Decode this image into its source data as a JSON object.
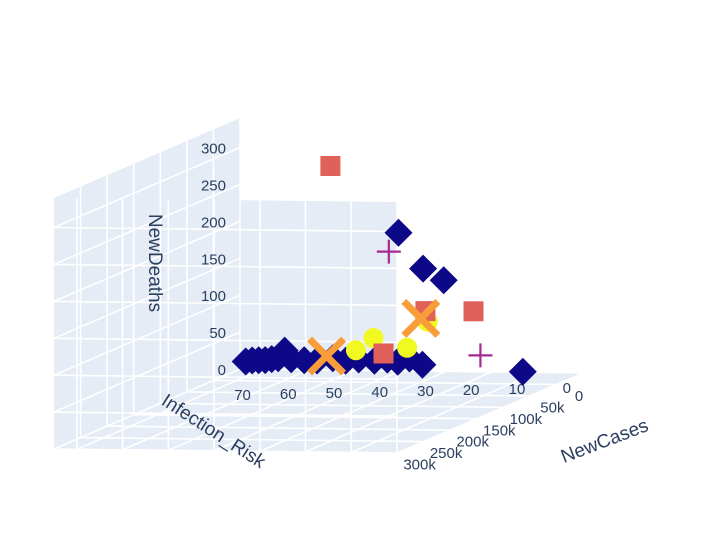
{
  "chart_data": {
    "type": "scatter3d",
    "axes": {
      "x": {
        "title": "NewCases",
        "ticks": [
          0,
          50000,
          100000,
          150000,
          200000,
          250000,
          300000
        ],
        "tick_labels": [
          "0",
          "50k",
          "100k",
          "150k",
          "200k",
          "250k",
          "300k"
        ]
      },
      "y": {
        "title": "Infection_Risk",
        "ticks": [
          0,
          10,
          20,
          30,
          40,
          50,
          60,
          70
        ],
        "tick_labels": [
          "0",
          "10",
          "20",
          "30",
          "40",
          "50",
          "60",
          "70"
        ]
      },
      "z": {
        "title": "NewDeaths",
        "ticks": [
          0,
          50,
          100,
          150,
          200,
          250,
          300
        ],
        "tick_labels": [
          "0",
          "50",
          "100",
          "150",
          "200",
          "250",
          "300"
        ]
      }
    },
    "background": "#e5ecf6",
    "grid": true,
    "legend": false,
    "series": [
      {
        "marker": "diamond",
        "color": "#0d0887",
        "points": [
          {
            "x": 330000,
            "y": 2,
            "z": 292
          },
          {
            "x": 10000,
            "y": 12,
            "z": 4
          },
          {
            "x": 90000,
            "y": 20,
            "z": 152
          },
          {
            "x": 60000,
            "y": 28,
            "z": 158
          },
          {
            "x": 120000,
            "y": 24,
            "z": 55
          },
          {
            "x": 110000,
            "y": 30,
            "z": 50
          },
          {
            "x": 100000,
            "y": 34,
            "z": 45
          },
          {
            "x": 95000,
            "y": 38,
            "z": 45
          },
          {
            "x": 85000,
            "y": 42,
            "z": 40
          },
          {
            "x": 75000,
            "y": 46,
            "z": 40
          },
          {
            "x": 70000,
            "y": 50,
            "z": 35
          },
          {
            "x": 60000,
            "y": 54,
            "z": 32
          },
          {
            "x": 50000,
            "y": 58,
            "z": 30
          },
          {
            "x": 45000,
            "y": 60,
            "z": 40
          },
          {
            "x": 40000,
            "y": 62,
            "z": 28
          },
          {
            "x": 35000,
            "y": 64,
            "z": 25
          },
          {
            "x": 30000,
            "y": 66,
            "z": 22
          },
          {
            "x": 25000,
            "y": 68,
            "z": 20
          },
          {
            "x": 20000,
            "y": 70,
            "z": 18
          },
          {
            "x": 15000,
            "y": 72,
            "z": 15
          },
          {
            "x": 130000,
            "y": 20,
            "z": 50
          },
          {
            "x": 125000,
            "y": 26,
            "z": 52
          }
        ]
      },
      {
        "marker": "circle",
        "color": "#f0f921",
        "points": [
          {
            "x": 120000,
            "y": 20,
            "z": 105
          },
          {
            "x": 50000,
            "y": 40,
            "z": 60
          },
          {
            "x": 40000,
            "y": 45,
            "z": 40
          },
          {
            "x": 90000,
            "y": 28,
            "z": 60
          }
        ]
      },
      {
        "marker": "square",
        "color": "#e0605a",
        "points": [
          {
            "x": 200000,
            "y": 32,
            "z": 340
          },
          {
            "x": 120000,
            "y": 10,
            "z": 120
          },
          {
            "x": 90000,
            "y": 24,
            "z": 110
          },
          {
            "x": 100000,
            "y": 32,
            "z": 55
          }
        ]
      },
      {
        "marker": "cross",
        "color": "#a5298f",
        "points": [
          {
            "x": 90000,
            "y": 32,
            "z": 190
          },
          {
            "x": 150000,
            "y": 5,
            "z": 70
          }
        ]
      },
      {
        "marker": "x",
        "color": "#f99d3a",
        "points": [
          {
            "x": 90000,
            "y": 25,
            "z": 100
          },
          {
            "x": 35000,
            "y": 52,
            "z": 30
          }
        ]
      }
    ]
  }
}
